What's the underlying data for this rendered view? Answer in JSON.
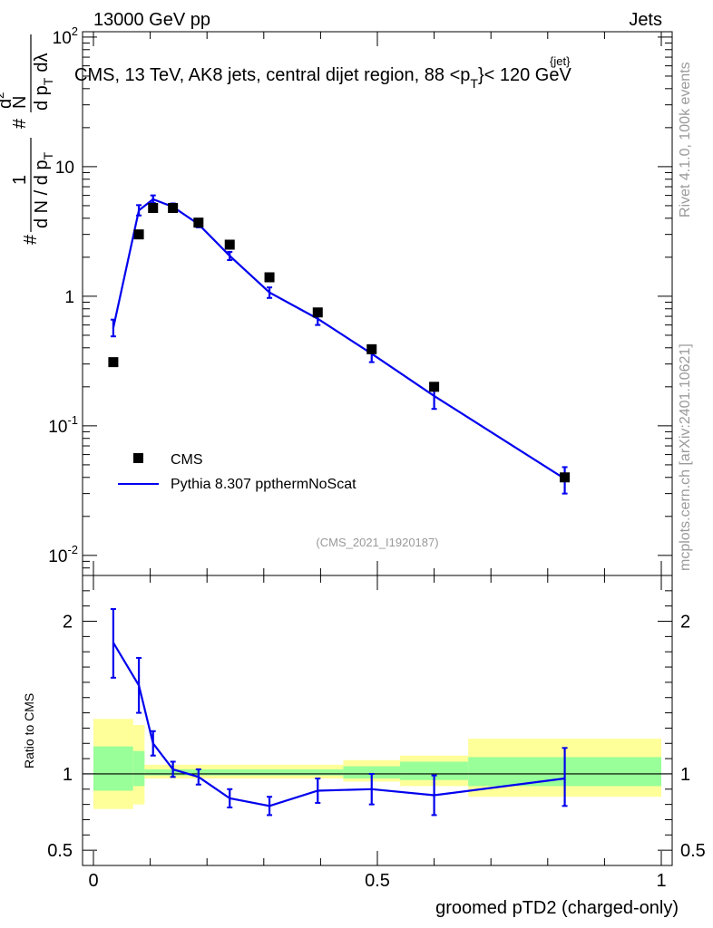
{
  "header": {
    "left": "13000 GeV pp",
    "right": "Jets"
  },
  "plot_title": "CMS, 13 TeV, AK8 jets, central dijet region, 88 <p",
  "plot_title_sup": "{jet}",
  "plot_title_sub": "T",
  "plot_title_end": "}< 120 GeV",
  "side_labels": {
    "rivet": "Rivet 4.1.0,  100k events",
    "mcplots": "mcplots.cern.ch [arXiv:2401.10621]"
  },
  "analysis_id": "(CMS_2021_I1920187)",
  "y_axis_label": "# 1/(dN/dp_T) # d²N/(dp_T dλ)",
  "y_axis_parts": {
    "hash": "#",
    "one": "1",
    "dn": "d N / d p",
    "t": "T",
    "num": "d",
    "num_sup": "2",
    "num_n": "N",
    "den": "d p",
    "den_t": "T",
    "den_l": "dλ"
  },
  "ratio_y_label": "Ratio to CMS",
  "x_axis_label": "groomed pTD2 (charged-only)",
  "legend": {
    "data_label": "CMS",
    "mc_label": "Pythia 8.307 ppthermNoScat"
  },
  "colors": {
    "mc": "#0000ee",
    "data": "#000000",
    "band_yellow": "#ffff99",
    "band_green": "#99ff99"
  },
  "chart_data": [
    {
      "type": "scatter",
      "name": "main",
      "yscale": "log",
      "ylim": [
        0.007,
        110
      ],
      "xlim": [
        -0.02,
        1.0
      ],
      "y_ticks": [
        {
          "value": 0.01,
          "label": "10",
          "sup": "-2"
        },
        {
          "value": 0.1,
          "label": "10",
          "sup": "-1"
        },
        {
          "value": 1,
          "label": "1",
          "sup": ""
        },
        {
          "value": 10,
          "label": "10",
          "sup": ""
        },
        {
          "value": 100,
          "label": "10",
          "sup": "2"
        }
      ],
      "series": [
        {
          "name": "CMS",
          "style": "markers",
          "x": [
            0.035,
            0.08,
            0.105,
            0.14,
            0.185,
            0.24,
            0.31,
            0.395,
            0.49,
            0.6,
            0.83
          ],
          "y": [
            0.31,
            3.0,
            4.8,
            4.8,
            3.7,
            2.5,
            1.4,
            0.75,
            0.39,
            0.2,
            0.04
          ]
        },
        {
          "name": "Pythia 8.307 ppthermNoScat",
          "style": "line",
          "x": [
            0.035,
            0.08,
            0.105,
            0.14,
            0.185,
            0.24,
            0.31,
            0.395,
            0.49,
            0.6,
            0.83
          ],
          "y": [
            0.57,
            4.6,
            5.6,
            4.9,
            3.6,
            2.05,
            1.07,
            0.67,
            0.36,
            0.17,
            0.039
          ],
          "err_lo": [
            0.08,
            0.4,
            0.35,
            0.3,
            0.2,
            0.15,
            0.1,
            0.07,
            0.05,
            0.035,
            0.009
          ],
          "err_hi": [
            0.09,
            0.45,
            0.4,
            0.3,
            0.2,
            0.15,
            0.1,
            0.08,
            0.05,
            0.035,
            0.009
          ]
        }
      ]
    },
    {
      "type": "line",
      "name": "ratio",
      "ylim": [
        0.4,
        2.3
      ],
      "xlim": [
        -0.02,
        1.0
      ],
      "y_ticks": [
        0.5,
        1,
        2
      ],
      "x_ticks": [
        0,
        0.5,
        1
      ],
      "x_tick_labels": [
        "0",
        "0.5",
        "1"
      ],
      "bands": [
        {
          "x0": 0.0,
          "x1": 0.07,
          "y_lo": 0.77,
          "y_hi": 1.36,
          "g_lo": 0.89,
          "g_hi": 1.18
        },
        {
          "x0": 0.07,
          "x1": 0.09,
          "y_lo": 0.8,
          "y_hi": 1.32,
          "g_lo": 0.92,
          "g_hi": 1.15
        },
        {
          "x0": 0.09,
          "x1": 0.44,
          "y_lo": 0.97,
          "y_hi": 1.06,
          "g_lo": 0.99,
          "g_hi": 1.03
        },
        {
          "x0": 0.44,
          "x1": 0.54,
          "y_lo": 0.95,
          "y_hi": 1.09,
          "g_lo": 0.97,
          "g_hi": 1.05
        },
        {
          "x0": 0.54,
          "x1": 0.66,
          "y_lo": 0.92,
          "y_hi": 1.12,
          "g_lo": 0.96,
          "g_hi": 1.08
        },
        {
          "x0": 0.66,
          "x1": 1.0,
          "y_lo": 0.85,
          "y_hi": 1.23,
          "g_lo": 0.92,
          "g_hi": 1.11
        }
      ],
      "series": [
        {
          "name": "Pythia/CMS",
          "x": [
            0.035,
            0.08,
            0.105,
            0.14,
            0.185,
            0.24,
            0.31,
            0.395,
            0.49,
            0.6,
            0.83
          ],
          "y": [
            1.86,
            1.58,
            1.2,
            1.03,
            0.98,
            0.84,
            0.79,
            0.89,
            0.9,
            0.86,
            0.97
          ],
          "err_lo": [
            0.23,
            0.18,
            0.08,
            0.05,
            0.05,
            0.06,
            0.06,
            0.08,
            0.1,
            0.13,
            0.18
          ],
          "err_hi": [
            0.22,
            0.18,
            0.08,
            0.05,
            0.05,
            0.06,
            0.06,
            0.08,
            0.1,
            0.13,
            0.2
          ]
        }
      ],
      "reference_line": 1
    }
  ]
}
